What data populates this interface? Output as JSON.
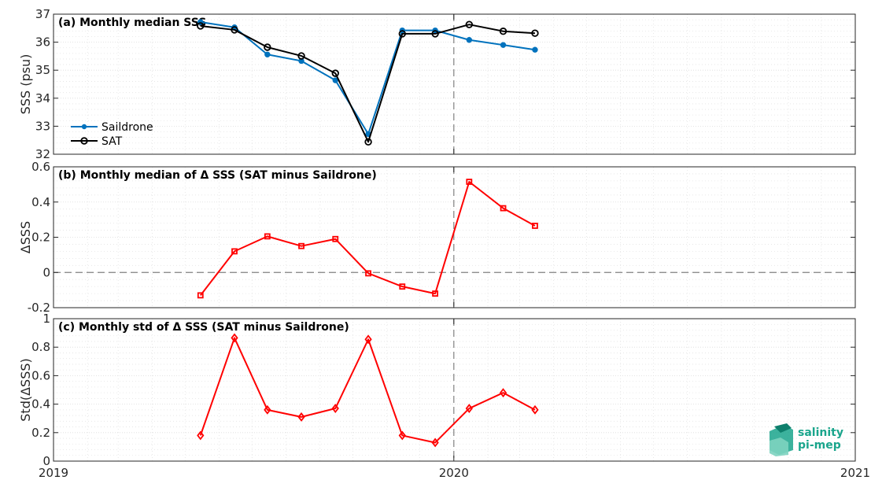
{
  "chart_data": [
    {
      "id": "a",
      "type": "line",
      "title": "(a) Monthly median SSS",
      "ylabel": "SSS (psu)",
      "xlim": [
        "2019-01-01",
        "2021-01-01"
      ],
      "ylim": [
        32,
        37
      ],
      "yticks": [
        "32",
        "33",
        "34",
        "35",
        "36",
        "37"
      ],
      "grid": true,
      "legend_position": "lower-left",
      "x": [
        "2019-05-15",
        "2019-06-15",
        "2019-07-15",
        "2019-08-15",
        "2019-09-15",
        "2019-10-15",
        "2019-11-15",
        "2019-12-15",
        "2020-01-15",
        "2020-02-15",
        "2020-03-15"
      ],
      "series": [
        {
          "name": "Saildrone",
          "color": "#0072BD",
          "marker": "dot",
          "values": [
            36.72,
            36.53,
            35.56,
            35.33,
            34.64,
            32.72,
            36.42,
            36.42,
            36.08,
            35.9,
            35.73
          ]
        },
        {
          "name": "SAT",
          "color": "#000000",
          "marker": "circle",
          "values": [
            36.58,
            36.44,
            35.82,
            35.51,
            34.89,
            32.44,
            36.3,
            36.3,
            36.63,
            36.39,
            36.32
          ]
        }
      ]
    },
    {
      "id": "b",
      "type": "line",
      "title": "(b) Monthly median of Δ SSS (SAT minus Saildrone)",
      "ylabel": "ΔSSS",
      "xlim": [
        "2019-01-01",
        "2021-01-01"
      ],
      "ylim": [
        -0.2,
        0.6
      ],
      "yticks": [
        "-0.2",
        "0",
        "0.2",
        "0.4",
        "0.6"
      ],
      "grid": true,
      "zero_line": true,
      "x": [
        "2019-05-15",
        "2019-06-15",
        "2019-07-15",
        "2019-08-15",
        "2019-09-15",
        "2019-10-15",
        "2019-11-15",
        "2019-12-15",
        "2020-01-15",
        "2020-02-15",
        "2020-03-15"
      ],
      "series": [
        {
          "color": "#FF0000",
          "marker": "square",
          "values": [
            -0.13,
            0.12,
            0.205,
            0.15,
            0.19,
            -0.005,
            -0.08,
            -0.12,
            0.515,
            0.365,
            0.265
          ]
        }
      ]
    },
    {
      "id": "c",
      "type": "line",
      "title": "(c) Monthly std of Δ SSS (SAT minus Saildrone)",
      "ylabel": "Std(ΔSSS)",
      "xlim": [
        "2019-01-01",
        "2021-01-01"
      ],
      "ylim": [
        0,
        1
      ],
      "yticks": [
        "0",
        "0.2",
        "0.4",
        "0.6",
        "0.8",
        "1"
      ],
      "xticks": [
        "2019",
        "2020",
        "2021"
      ],
      "grid": true,
      "x": [
        "2019-05-15",
        "2019-06-15",
        "2019-07-15",
        "2019-08-15",
        "2019-09-15",
        "2019-10-15",
        "2019-11-15",
        "2019-12-15",
        "2020-01-15",
        "2020-02-15",
        "2020-03-15"
      ],
      "series": [
        {
          "color": "#FF0000",
          "marker": "diamond",
          "values": [
            0.18,
            0.865,
            0.36,
            0.31,
            0.37,
            0.855,
            0.18,
            0.13,
            0.37,
            0.48,
            0.36
          ]
        }
      ]
    }
  ],
  "vertical_marker": "2020-01-01",
  "logo": {
    "line1": "salinity",
    "line2": "pi-mep"
  }
}
